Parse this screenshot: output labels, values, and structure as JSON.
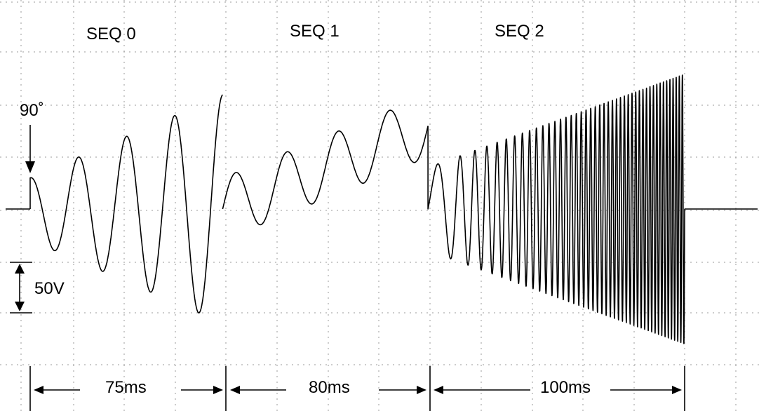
{
  "chart_data": {
    "type": "line",
    "title": "",
    "xlabel": "",
    "ylabel": "",
    "grid": true,
    "segments": [
      {
        "label": "SEQ 0",
        "duration_ms": 75,
        "start_phase_deg": 90,
        "cycles": 4,
        "amplitude_start_v": 30,
        "amplitude_end_v": 110,
        "offset_v": 0
      },
      {
        "label": "SEQ 1",
        "duration_ms": 80,
        "cycles": 4,
        "amplitude_v": 30,
        "offset_start_v": 0,
        "offset_end_v": 80
      },
      {
        "label": "SEQ 2",
        "duration_ms": 100,
        "start_freq_hz": 50,
        "end_freq_hz": 850,
        "amplitude_start_v": 40,
        "amplitude_end_v": 130,
        "offset_v": 0
      }
    ],
    "annotations": {
      "phase": "90˚",
      "volts_per_div": "50V",
      "durations": [
        "75ms",
        "80ms",
        "100ms"
      ]
    }
  }
}
